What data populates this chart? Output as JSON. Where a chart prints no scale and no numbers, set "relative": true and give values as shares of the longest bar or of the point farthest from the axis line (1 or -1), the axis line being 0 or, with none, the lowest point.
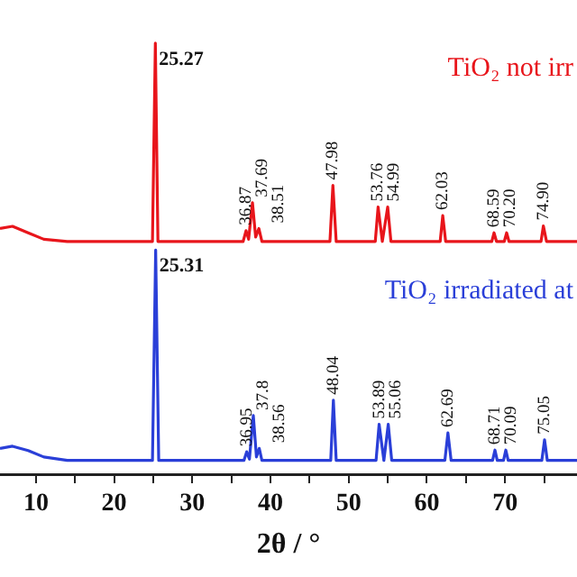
{
  "chart_data": {
    "type": "line",
    "relative": true,
    "xlabel": "2θ / °",
    "xlim": [
      5.4,
      79.2
    ],
    "xticks": [
      10,
      {
        "value": 15,
        "label": null
      },
      20,
      {
        "value": 25,
        "label": null
      },
      30,
      {
        "value": 35,
        "label": null
      },
      40,
      {
        "value": 45,
        "label": null
      },
      50,
      {
        "value": 55,
        "label": null
      },
      60,
      {
        "value": 65,
        "label": null
      },
      70,
      {
        "value": 75,
        "label": null
      }
    ],
    "grid": false,
    "legend": false,
    "marker": "none",
    "line_style": "solid",
    "series": [
      {
        "name": "TiO₂ not irr",
        "color": "#e8151b",
        "x": [
          5.4,
          7,
          9,
          11,
          14,
          24.9,
          25.27,
          25.6,
          36.5,
          36.87,
          37.2,
          37.69,
          38.1,
          38.51,
          38.9,
          47.6,
          47.98,
          48.4,
          53.4,
          53.76,
          54.3,
          54.99,
          55.4,
          61.7,
          62.03,
          62.4,
          68.3,
          68.59,
          68.9,
          69.9,
          70.2,
          70.5,
          74.6,
          74.9,
          75.3,
          79.2
        ],
        "values": [
          0.57,
          0.575,
          0.56,
          0.545,
          0.54,
          0.54,
          1.0,
          0.54,
          0.54,
          0.565,
          0.545,
          0.63,
          0.55,
          0.57,
          0.54,
          0.54,
          0.67,
          0.54,
          0.54,
          0.62,
          0.54,
          0.62,
          0.54,
          0.54,
          0.6,
          0.54,
          0.54,
          0.56,
          0.54,
          0.54,
          0.56,
          0.54,
          0.54,
          0.576,
          0.54,
          0.54
        ]
      },
      {
        "name": "TiO₂ irradiated at",
        "color": "#2a3fd8",
        "x": [
          5.4,
          7,
          9,
          11,
          14,
          24.9,
          25.31,
          25.7,
          36.6,
          36.95,
          37.3,
          37.8,
          38.2,
          38.56,
          38.9,
          47.7,
          48.04,
          48.4,
          53.5,
          53.89,
          54.5,
          55.06,
          55.5,
          62.3,
          62.69,
          63.1,
          68.4,
          68.71,
          69.0,
          69.8,
          70.09,
          70.4,
          74.7,
          75.05,
          75.4,
          79.2
        ],
        "values": [
          0.06,
          0.065,
          0.055,
          0.04,
          0.032,
          0.032,
          0.52,
          0.032,
          0.032,
          0.052,
          0.035,
          0.136,
          0.04,
          0.06,
          0.032,
          0.032,
          0.172,
          0.032,
          0.032,
          0.116,
          0.032,
          0.116,
          0.032,
          0.032,
          0.096,
          0.032,
          0.032,
          0.056,
          0.032,
          0.032,
          0.056,
          0.032,
          0.032,
          0.08,
          0.032,
          0.032
        ]
      }
    ],
    "annotations": [
      {
        "text": "25.27",
        "x": 25.27,
        "y": 1.0
      },
      {
        "text": "36.87",
        "x": 36.87,
        "y": 0.565
      },
      {
        "text": "37.69",
        "x": 37.69,
        "y": 0.63
      },
      {
        "text": "38.51",
        "x": 38.51,
        "y": 0.57
      },
      {
        "text": "47.98",
        "x": 47.98,
        "y": 0.67
      },
      {
        "text": "53.76",
        "x": 53.76,
        "y": 0.62
      },
      {
        "text": "54.99",
        "x": 54.99,
        "y": 0.62
      },
      {
        "text": "62.03",
        "x": 62.03,
        "y": 0.6
      },
      {
        "text": "68.59",
        "x": 68.59,
        "y": 0.56
      },
      {
        "text": "70.20",
        "x": 70.2,
        "y": 0.56
      },
      {
        "text": "74.90",
        "x": 74.9,
        "y": 0.576
      },
      {
        "text": "25.31",
        "x": 25.31,
        "y": 0.52
      },
      {
        "text": "36.95",
        "x": 36.95,
        "y": 0.052
      },
      {
        "text": "37.8",
        "x": 37.8,
        "y": 0.136
      },
      {
        "text": "38.56",
        "x": 38.56,
        "y": 0.06
      },
      {
        "text": "48.04",
        "x": 48.04,
        "y": 0.172
      },
      {
        "text": "53.89",
        "x": 53.89,
        "y": 0.116
      },
      {
        "text": "55.06",
        "x": 55.06,
        "y": 0.116
      },
      {
        "text": "62.69",
        "x": 62.69,
        "y": 0.096
      },
      {
        "text": "68.71",
        "x": 68.71,
        "y": 0.056
      },
      {
        "text": "70.09",
        "x": 70.09,
        "y": 0.056
      },
      {
        "text": "75.05",
        "x": 75.05,
        "y": 0.08
      }
    ]
  }
}
